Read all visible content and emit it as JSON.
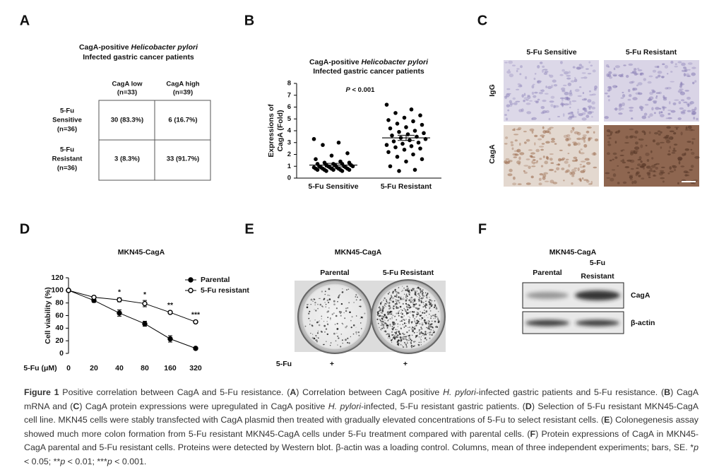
{
  "figure": {
    "panel_labels": [
      "A",
      "B",
      "C",
      "D",
      "E",
      "F"
    ],
    "panel_a": {
      "title": [
        "CagA-positive ",
        "Helicobacter pylori"
      ],
      "subtitle": "Infected gastric cancer patients",
      "col_headers": [
        [
          "CagA low",
          "(n=33)"
        ],
        [
          "CagA high",
          "(n=39)"
        ]
      ],
      "row_headers": [
        [
          "5-Fu",
          "Sensitive",
          "(n=36)"
        ],
        [
          "5-Fu",
          "Resistant",
          "(n=36)"
        ]
      ],
      "cells": [
        [
          "30 (83.3%)",
          "6 (16.7%)"
        ],
        [
          "3 (8.3%)",
          "33 (91.7%)"
        ]
      ]
    },
    "panel_c": {
      "columns": [
        "5-Fu Sensitive",
        "5-Fu Resistant"
      ],
      "rows": [
        "IgG",
        "CagA"
      ]
    },
    "panel_e": {
      "title": "MKN45-CagA",
      "columns": [
        "Parental",
        "5-Fu Resistant"
      ],
      "treatment_label": "5-Fu",
      "treatment": [
        "+",
        "+"
      ]
    },
    "panel_f": {
      "title": "MKN45-CagA",
      "columns": [
        [
          "Parental"
        ],
        [
          "5-Fu",
          "Resistant"
        ]
      ],
      "bands": [
        "CagA",
        "β-actin"
      ]
    }
  },
  "chart_data": [
    {
      "type": "dot",
      "title": [
        "CagA-positive ",
        "Helicobacter pylori"
      ],
      "subtitle": "Infected gastric cancer patients",
      "ylabel": [
        "Expressions of",
        "CagA (Fold)"
      ],
      "annotation": [
        "P",
        " < 0.001"
      ],
      "categories": [
        "5-Fu Sensitive",
        "5-Fu Resistant"
      ],
      "color": "#000000",
      "groups": [
        {
          "values": [
            3.3,
            3.0,
            2.8,
            2.1,
            1.9,
            1.6,
            1.4,
            1.3,
            1.3,
            1.2,
            1.2,
            1.2,
            1.1,
            1.1,
            1.1,
            1.0,
            1.0,
            1.0,
            1.0,
            0.9,
            0.9,
            0.9,
            0.9,
            0.9,
            0.8,
            0.8,
            0.8,
            0.8,
            0.8,
            0.7,
            0.7,
            0.7,
            0.7,
            0.7,
            0.6,
            0.6
          ]
        },
        {
          "values": [
            6.2,
            5.8,
            5.5,
            5.3,
            5.1,
            4.9,
            4.8,
            4.6,
            4.5,
            4.3,
            4.2,
            4.0,
            3.9,
            3.8,
            3.7,
            3.6,
            3.5,
            3.4,
            3.3,
            3.2,
            3.1,
            3.0,
            2.9,
            2.8,
            2.7,
            2.6,
            2.5,
            2.4,
            2.2,
            2.0,
            1.8,
            1.6,
            1.4,
            1.0,
            0.7,
            0.6
          ]
        }
      ],
      "means": [
        1.1,
        3.4
      ],
      "errors": [
        0.15,
        0.22
      ],
      "ylim": [
        0,
        8
      ],
      "yticks": [
        0,
        1,
        2,
        3,
        4,
        5,
        6,
        7,
        8
      ]
    },
    {
      "type": "line",
      "title": "MKN45-CagA",
      "xlabel": "5-Fu (μM)",
      "ylabel": "Cell viability (%)",
      "categories": [
        "0",
        "20",
        "40",
        "80",
        "160",
        "320"
      ],
      "series": [
        {
          "name": "Parental",
          "marker": "filled",
          "color": "#000000",
          "values": [
            100,
            84,
            64,
            47,
            23,
            8
          ],
          "errors": [
            2,
            3,
            5,
            4,
            5,
            2
          ]
        },
        {
          "name": "5-Fu resistant",
          "marker": "open",
          "color": "#000000",
          "values": [
            100,
            89,
            85,
            79,
            65,
            50
          ],
          "errors": [
            2,
            2,
            3,
            5,
            2,
            2
          ]
        }
      ],
      "annotations": [
        {
          "x": "40",
          "text": "*"
        },
        {
          "x": "80",
          "text": "*"
        },
        {
          "x": "160",
          "text": "**"
        },
        {
          "x": "320",
          "text": "***"
        }
      ],
      "ylim": [
        0,
        120
      ],
      "yticks": [
        0,
        20,
        40,
        60,
        80,
        100,
        120
      ]
    }
  ],
  "caption": [
    {
      "text": "Figure 1",
      "style": "bold"
    },
    {
      "text": " Positive correlation between CagA and 5-Fu resistance. (",
      "style": "normal"
    },
    {
      "text": "A",
      "style": "bold"
    },
    {
      "text": ") Correlation between CagA positive ",
      "style": "normal"
    },
    {
      "text": "H. pylori",
      "style": "italic"
    },
    {
      "text": "-infected gastric patients and 5-Fu resistance. (",
      "style": "normal"
    },
    {
      "text": "B",
      "style": "bold"
    },
    {
      "text": ") CagA mRNA and (",
      "style": "normal"
    },
    {
      "text": "C",
      "style": "bold"
    },
    {
      "text": ") CagA protein expressions were upregulated in CagA positive ",
      "style": "normal"
    },
    {
      "text": "H. pylori",
      "style": "italic"
    },
    {
      "text": "-infected, 5-Fu resistant gastric patients. (",
      "style": "normal"
    },
    {
      "text": "D",
      "style": "bold"
    },
    {
      "text": ") Selection of 5-Fu resistant MKN45-CagA cell line. MKN45 cells were stably transfected with CagA plasmid then treated with gradually elevated concentrations of 5-Fu to select resistant cells. (",
      "style": "normal"
    },
    {
      "text": "E",
      "style": "bold"
    },
    {
      "text": ") Colonegenesis assay showed much more colon formation from 5-Fu resistant MKN45-CagA cells under 5-Fu treatment compared with parental cells. (",
      "style": "normal"
    },
    {
      "text": "F",
      "style": "bold"
    },
    {
      "text": ") Protein expressions of CagA in MKN45-CagA parental and 5-Fu resistant cells. Proteins were detected by Western blot. β-actin was a loading control. Columns, mean of three independent experiments; bars, SE. *",
      "style": "normal"
    },
    {
      "text": "p",
      "style": "italic"
    },
    {
      "text": " < 0.05; **",
      "style": "normal"
    },
    {
      "text": "p",
      "style": "italic"
    },
    {
      "text": " < 0.01; ***",
      "style": "normal"
    },
    {
      "text": "p",
      "style": "italic"
    },
    {
      "text": " < 0.001.",
      "style": "normal"
    }
  ]
}
